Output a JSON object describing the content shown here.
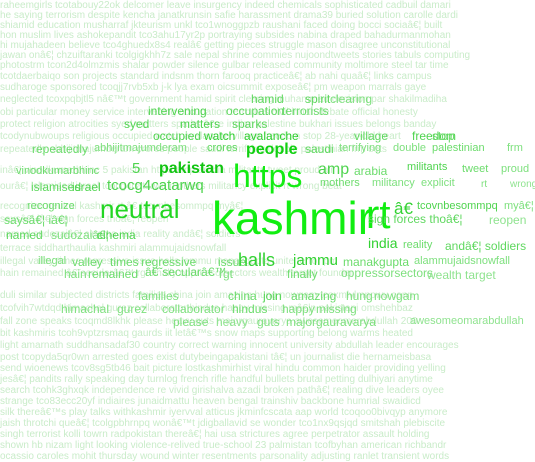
{
  "colors": {
    "background": "#ffffff",
    "faint": "#cfeccf",
    "light": "#9fe89f",
    "medium": "#44d744",
    "bright": "#11e811"
  },
  "background_lines": [
    "raheemgirls tcotabouy22ok delcomer leave insurgency indeed chemicals sophisticated cadbuil damari",
    "he saying terrorism despite kencha janatkrunsin safie harassment drama39 buried solution carolle dardi",
    "shiamid education musharraf jkteurism unkl tco1wnoggpzb raushani faced doing bocci sociaâ€¦ built",
    "hon muslim lives ashokepandit tco3ahu17yr2p portraying subsides nabina draped bahadurmanmohan",
    "hi mujahadeen believe tco4ghuedx8s4 realâ€ getting pieces struggle mason disagree unconstitutional",
    "jawan onâ€¦ chzuiftaranki tcolgigkhh7z sale nepal shrine commies nujoondtweets stories tabuls computing",
    "photostrm tcon2d4olmzmis shalar powder silence gulbar released community moltimore steel tar time",
    "tcotdaerbaiqo son projects standard indsnm thorn farooq practiceâ€¦ ab nahi quaâ€¦ links campus",
    "sudharoge sponsored tcoqjj7rvb5xb j-k lya exam oicsummit exposeâ€¦ pm weapon marrals gaye",
    "neglected tcoxpqbjtl5 nâ€™t government hamid spirit clearing muhammad decision par shakilmadiha",
    "obi particular money service intervening occupation terrorists civil innah debate official honesty",
    "protect religion atrocities syed matters sparks â€œ indian palestine bukhari issues belongs banday",
    "tcodynubwoups religious occupied watch avalanche village freedom stop 28-year-old heart",
    "repeatedly abhijitmajumderam crores people saudi terrifying double palestinian frm sets",
    "inâ€¦ vinodkumarbhinc 5 pakistan https amp arabia militants tweet proud ali",
    "ourâ€¦ islamised israel tcocg4catarwq mothers militancy explicit rt wrong beat",
    "recognize neutral kashmir rt â€ tcovnbesommpq myâ€¦",
    "saysâ€¦ iâ€¦ sign forces thoâ€¦ reopen",
    "named sudozaiâ€¦ cinema india reality andâ€¦ soldiers",
    "terrace siddharthaulia kashmiri alammujaidsnowfall",
    "illegal valley times regressive issue halls jammu manakgupta unite terror pm",
    "hain remained â€˜secularâ€™ rgt finally oppressorsectors wealth target founder",
    "duli similar subjected districts families china join amazing hung nowgam tcoxmlvlmnpwu conn",
    "tcofvih7wtdqd himachal gurez collaborator hindus happy missing mâ€¦n pakistani omshehbaz",
    "fall zone speaks tcoqmd8lkhk please heavy guts majorgauravarya awesomeomarabdullah 200",
    "bit kashmiris tcoh9vptzrsmaq gaurds iit letâ€™s snow maps supporting belong warms heated",
    "light amarnath suddhansadaf30 country correct warning innocent university abdullah leader encourages",
    "post tcopyda5qr0wn arrested goes exist dutybeingapakistani tâ€¦ un journalist die hernameisbasa",
    "send wioenews tcov8sg5tb46 bait picture lostkashmirhist viral hindu common haider providing yelling",
    "jesâ€¦ pandits rally speaking day turnlog french rifle handful bullets brutal petting dulhiyari anytime",
    "search tcohk3ghxqk independence re vivid girishalva azadi broken pathâ€¦ realing dive leaders oyee",
    "strange tco83ecc20yf indiaires junaidmattu heaven bengal trainshiv backbone humrial swaidicd",
    "silk thereâ€™s play talks withkashmir iyervval atticus jkminfcscata aap world tcoqoo0bivqyp anymore",
    "jaish throtchi queâ€¦ tcolgpbhrnpq wonâ€™t jdigballavid se wonder tco1nx9qsjqd smitshah plebiscite",
    "singh terrorist kolli towrn radpokistan thereâ€¦ hai usa strictures agree perpetrator assault holding",
    "shown hb nizam light looking violence-relived true-school 23 palmistan tcofbyhan american richbandr",
    "ocassio caroles mohit thursday wound winter resentments parsonality adjusting ranlet transient words"
  ],
  "words": [
    {
      "t": "hamid",
      "c": "#5fd85f"
    },
    {
      "t": "spirit",
      "c": "#5fd85f"
    },
    {
      "t": "clearing",
      "c": "#7ee07e"
    },
    {
      "t": "intervening",
      "c": "#4fd44f"
    },
    {
      "t": "occupation",
      "c": "#5fd85f"
    },
    {
      "t": "terrorists",
      "c": "#6cdc6c"
    },
    {
      "t": "syed",
      "c": "#55d655"
    },
    {
      "t": "matters",
      "c": "#4fd44f"
    },
    {
      "t": "sparks",
      "c": "#5fd85f"
    },
    {
      "t": "occupied",
      "c": "#4fd44f"
    },
    {
      "t": "watch",
      "c": "#2fcf2f"
    },
    {
      "t": "avalanche",
      "c": "#2fcf2f"
    },
    {
      "t": "village",
      "c": "#5fd85f"
    },
    {
      "t": "freedom",
      "c": "#4fd44f"
    },
    {
      "t": "stop",
      "c": "#6cdc6c"
    },
    {
      "t": "repeatedly",
      "c": "#6cdc6c"
    },
    {
      "t": "abhijitmajumderam",
      "c": "#7ee07e"
    },
    {
      "t": "crores",
      "c": "#5fd85f"
    },
    {
      "t": "people",
      "c": "#11d011"
    },
    {
      "t": "saudi",
      "c": "#5fd85f"
    },
    {
      "t": "terrifying",
      "c": "#7ee07e"
    },
    {
      "t": "double",
      "c": "#7ee07e"
    },
    {
      "t": "palestinian",
      "c": "#6cdc6c"
    },
    {
      "t": "frm",
      "c": "#7ee07e"
    },
    {
      "t": "vinodkumarbhinc",
      "c": "#6cdc6c"
    },
    {
      "t": "5",
      "c": "#4fd44f"
    },
    {
      "t": "pakistan",
      "c": "#11c411"
    },
    {
      "t": "https",
      "c": "#13ec13"
    },
    {
      "t": "amp",
      "c": "#4fd44f"
    },
    {
      "t": "arabia",
      "c": "#6cdc6c"
    },
    {
      "t": "militants",
      "c": "#4fd44f"
    },
    {
      "t": "tweet",
      "c": "#6cdc6c"
    },
    {
      "t": "proud",
      "c": "#7ee07e"
    },
    {
      "t": "islamised",
      "c": "#5fd85f"
    },
    {
      "t": "israel",
      "c": "#4fd44f"
    },
    {
      "t": "tcocg4catarwq",
      "c": "#4fd44f"
    },
    {
      "t": "mothers",
      "c": "#6cdc6c"
    },
    {
      "t": "militancy",
      "c": "#7ee07e"
    },
    {
      "t": "explicit",
      "c": "#7ee07e"
    },
    {
      "t": "rt",
      "c": "#7ee07e"
    },
    {
      "t": "wrong",
      "c": "#8fe38f"
    },
    {
      "t": "recognize",
      "c": "#6cdc6c"
    },
    {
      "t": "neutral",
      "c": "#22d622"
    },
    {
      "t": "kashmir",
      "c": "#11ee11"
    },
    {
      "t": "rt",
      "c": "#11ee11"
    },
    {
      "t": "â€",
      "c": "#33d233"
    },
    {
      "t": "tcovnbesommpq",
      "c": "#4fd44f"
    },
    {
      "t": "myâ€¦",
      "c": "#7ee07e"
    },
    {
      "t": "saysâ€¦ iâ€¦",
      "c": "#6cdc6c"
    },
    {
      "t": "sign forces thoâ€¦",
      "c": "#5fd85f"
    },
    {
      "t": "reopen",
      "c": "#8fe38f"
    },
    {
      "t": "named",
      "c": "#5fd85f"
    },
    {
      "t": "sudozaiâ€¦",
      "c": "#7ee07e"
    },
    {
      "t": "cinema",
      "c": "#4fd44f"
    },
    {
      "t": "india",
      "c": "#33d233"
    },
    {
      "t": "reality",
      "c": "#6cdc6c"
    },
    {
      "t": "andâ€¦ soldiers",
      "c": "#5fd85f"
    },
    {
      "t": "illegal",
      "c": "#7ee07e"
    },
    {
      "t": "valley",
      "c": "#6cdc6c"
    },
    {
      "t": "times",
      "c": "#6cdc6c"
    },
    {
      "t": "regressive",
      "c": "#6cdc6c"
    },
    {
      "t": "issue",
      "c": "#6cdc6c"
    },
    {
      "t": "halls",
      "c": "#33d233"
    },
    {
      "t": "jammu",
      "c": "#33d233"
    },
    {
      "t": "manakgupta",
      "c": "#6cdc6c"
    },
    {
      "t": "alammujaidsnowfall",
      "c": "#7ee07e"
    },
    {
      "t": "hain",
      "c": "#7ee07e"
    },
    {
      "t": "remained",
      "c": "#6cdc6c"
    },
    {
      "t": "â€˜secularâ€™",
      "c": "#6cdc6c"
    },
    {
      "t": "rgt",
      "c": "#7ee07e"
    },
    {
      "t": "finally",
      "c": "#6cdc6c"
    },
    {
      "t": "oppressorsectors",
      "c": "#7ee07e"
    },
    {
      "t": "wealth target",
      "c": "#8fe38f"
    },
    {
      "t": "families",
      "c": "#7ee07e"
    },
    {
      "t": "china",
      "c": "#6cdc6c"
    },
    {
      "t": "join",
      "c": "#4fd44f"
    },
    {
      "t": "amazing",
      "c": "#6cdc6c"
    },
    {
      "t": "hung",
      "c": "#7ee07e"
    },
    {
      "t": "nowgam",
      "c": "#7ee07e"
    },
    {
      "t": "himachal",
      "c": "#7ee07e"
    },
    {
      "t": "gurez",
      "c": "#7ee07e"
    },
    {
      "t": "collaborator",
      "c": "#7ee07e"
    },
    {
      "t": "hindus",
      "c": "#6cdc6c"
    },
    {
      "t": "happy",
      "c": "#7ee07e"
    },
    {
      "t": "missing",
      "c": "#7ee07e"
    },
    {
      "t": "please",
      "c": "#7ee07e"
    },
    {
      "t": "heavy",
      "c": "#8fe38f"
    },
    {
      "t": "guts",
      "c": "#7ee07e"
    },
    {
      "t": "majorgauravarya",
      "c": "#7ee07e"
    },
    {
      "t": "awesomeomarabdullah",
      "c": "#8fe38f"
    }
  ]
}
